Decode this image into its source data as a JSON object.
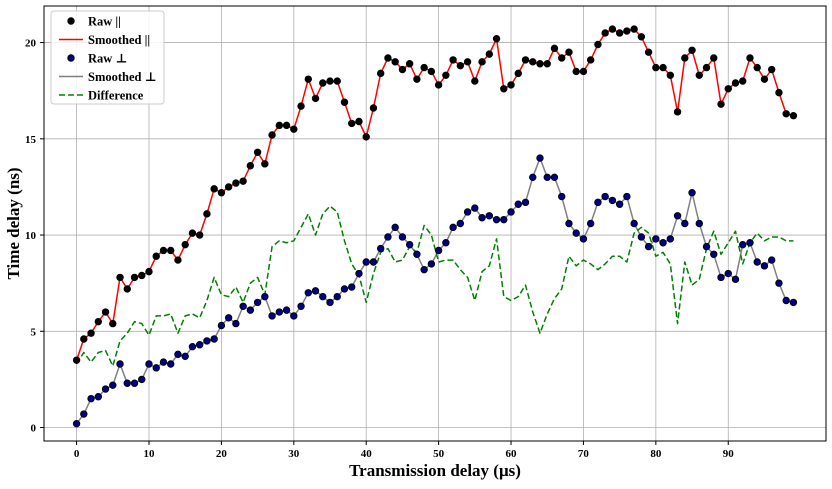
{
  "chart_data": {
    "type": "line",
    "title": "",
    "xlabel": "Transmission delay (μs)",
    "ylabel": "Time delay (ns)",
    "xlim": [
      -4.5,
      103.5
    ],
    "ylim": [
      -0.7,
      21.9
    ],
    "xticks": [
      0,
      10,
      20,
      30,
      40,
      50,
      60,
      70,
      80,
      90
    ],
    "yticks": [
      0,
      5,
      10,
      15,
      20
    ],
    "grid": true,
    "legend_position": "top-left",
    "x": [
      0,
      1,
      2,
      3,
      4,
      5,
      6,
      7,
      8,
      9,
      10,
      11,
      12,
      13,
      14,
      15,
      16,
      17,
      18,
      19,
      20,
      21,
      22,
      23,
      24,
      25,
      26,
      27,
      28,
      29,
      30,
      31,
      32,
      33,
      34,
      35,
      36,
      37,
      38,
      39,
      40,
      41,
      42,
      43,
      44,
      45,
      46,
      47,
      48,
      49,
      50,
      51,
      52,
      53,
      54,
      55,
      56,
      57,
      58,
      59,
      60,
      61,
      62,
      63,
      64,
      65,
      66,
      67,
      68,
      69,
      70,
      71,
      72,
      73,
      74,
      75,
      76,
      77,
      78,
      79,
      80,
      81,
      82,
      83,
      84,
      85,
      86,
      87,
      88,
      89,
      90,
      91,
      92,
      93,
      94,
      95,
      96,
      97,
      98,
      99
    ],
    "series": [
      {
        "name": "Raw ||",
        "kind": "scatter",
        "color": "#000000",
        "edge": "#000000",
        "values": [
          3.5,
          4.6,
          4.9,
          5.5,
          6.0,
          5.4,
          7.8,
          7.2,
          7.8,
          7.9,
          8.1,
          8.9,
          9.2,
          9.2,
          8.7,
          9.5,
          10.1,
          10.0,
          11.1,
          12.4,
          12.2,
          12.5,
          12.7,
          12.8,
          13.6,
          14.3,
          13.7,
          15.2,
          15.7,
          15.7,
          15.5,
          16.7,
          18.1,
          17.1,
          17.9,
          18.0,
          18.0,
          16.9,
          15.8,
          15.9,
          15.1,
          16.6,
          18.4,
          19.2,
          19.0,
          18.6,
          18.9,
          18.1,
          18.7,
          18.5,
          17.8,
          18.3,
          19.1,
          18.8,
          19.0,
          18.0,
          19.0,
          19.4,
          20.2,
          17.6,
          17.8,
          18.4,
          19.1,
          19.0,
          18.9,
          18.9,
          19.7,
          19.2,
          19.5,
          18.5,
          18.5,
          19.1,
          19.9,
          20.5,
          20.7,
          20.5,
          20.6,
          20.7,
          20.3,
          19.5,
          18.7,
          18.7,
          18.3,
          16.4,
          19.2,
          19.6,
          18.3,
          18.7,
          19.2,
          16.8,
          17.6,
          17.9,
          18.0,
          19.2,
          18.7,
          18.1,
          18.6,
          17.4,
          16.3,
          16.2
        ]
      },
      {
        "name": "Smoothed ||",
        "kind": "line",
        "color": "#ff0000",
        "dash": "solid",
        "values": [
          3.5,
          4.6,
          4.9,
          5.5,
          6.0,
          5.4,
          7.8,
          7.2,
          7.8,
          7.9,
          8.1,
          8.9,
          9.2,
          9.2,
          8.7,
          9.5,
          10.1,
          10.0,
          11.1,
          12.4,
          12.2,
          12.5,
          12.7,
          12.8,
          13.6,
          14.3,
          13.7,
          15.2,
          15.7,
          15.7,
          15.5,
          16.7,
          18.1,
          17.1,
          17.9,
          18.0,
          18.0,
          16.9,
          15.8,
          15.9,
          15.1,
          16.6,
          18.4,
          19.2,
          19.0,
          18.6,
          18.9,
          18.1,
          18.7,
          18.5,
          17.8,
          18.3,
          19.1,
          18.8,
          19.0,
          18.0,
          19.0,
          19.4,
          20.2,
          17.6,
          17.8,
          18.4,
          19.1,
          19.0,
          18.9,
          18.9,
          19.7,
          19.2,
          19.5,
          18.5,
          18.5,
          19.1,
          19.9,
          20.5,
          20.7,
          20.5,
          20.6,
          20.7,
          20.3,
          19.5,
          18.7,
          18.7,
          18.3,
          16.4,
          19.2,
          19.6,
          18.3,
          18.7,
          19.2,
          16.8,
          17.6,
          17.9,
          18.0,
          19.2,
          18.7,
          18.1,
          18.6,
          17.4,
          16.3,
          16.2
        ]
      },
      {
        "name": "Raw ⊥",
        "kind": "scatter",
        "color": "#000080",
        "edge": "#000000",
        "values": [
          0.2,
          0.7,
          1.5,
          1.6,
          2.0,
          2.2,
          3.3,
          2.3,
          2.3,
          2.5,
          3.3,
          3.1,
          3.4,
          3.3,
          3.8,
          3.7,
          4.2,
          4.3,
          4.5,
          4.6,
          5.3,
          5.7,
          5.4,
          6.3,
          6.1,
          6.5,
          6.8,
          5.8,
          6.0,
          6.1,
          5.8,
          6.3,
          7.0,
          7.1,
          6.8,
          6.5,
          6.8,
          7.2,
          7.3,
          8.0,
          8.6,
          8.6,
          9.3,
          9.9,
          10.4,
          9.9,
          9.5,
          9.0,
          8.2,
          8.5,
          9.2,
          9.6,
          10.4,
          10.6,
          11.2,
          11.4,
          10.9,
          11.0,
          10.8,
          10.8,
          11.2,
          11.6,
          11.7,
          13.0,
          14.0,
          13.0,
          13.0,
          12.0,
          10.6,
          10.1,
          9.8,
          10.6,
          11.7,
          12.0,
          11.8,
          11.6,
          12.0,
          10.6,
          9.9,
          9.4,
          9.8,
          9.6,
          9.8,
          11.0,
          10.6,
          12.2,
          10.6,
          9.4,
          9.0,
          7.8,
          8.0,
          7.7,
          9.5,
          9.6,
          8.6,
          8.4,
          8.7,
          7.5,
          6.6,
          6.5
        ]
      },
      {
        "name": "Smoothed ⊥",
        "kind": "line",
        "color": "#808080",
        "dash": "solid",
        "values": [
          0.2,
          0.7,
          1.5,
          1.6,
          2.0,
          2.2,
          3.3,
          2.3,
          2.3,
          2.5,
          3.3,
          3.1,
          3.4,
          3.3,
          3.8,
          3.7,
          4.2,
          4.3,
          4.5,
          4.6,
          5.3,
          5.7,
          5.4,
          6.3,
          6.1,
          6.5,
          6.8,
          5.8,
          6.0,
          6.1,
          5.8,
          6.3,
          7.0,
          7.1,
          6.8,
          6.5,
          6.8,
          7.2,
          7.3,
          8.0,
          8.6,
          8.6,
          9.3,
          9.9,
          10.4,
          9.9,
          9.5,
          9.0,
          8.2,
          8.5,
          9.2,
          9.6,
          10.4,
          10.6,
          11.2,
          11.4,
          10.9,
          11.0,
          10.8,
          10.8,
          11.2,
          11.6,
          11.7,
          13.0,
          14.0,
          13.0,
          13.0,
          12.0,
          10.6,
          10.1,
          9.8,
          10.6,
          11.7,
          12.0,
          11.8,
          11.6,
          12.0,
          10.6,
          9.9,
          9.4,
          9.8,
          9.6,
          9.8,
          11.0,
          10.6,
          12.2,
          10.6,
          9.4,
          9.0,
          7.8,
          8.0,
          7.7,
          9.5,
          9.6,
          8.6,
          8.4,
          8.7,
          7.5,
          6.6,
          6.5
        ]
      },
      {
        "name": "Difference",
        "kind": "line",
        "color": "#008000",
        "dash": "dashed",
        "values": [
          3.3,
          3.9,
          3.4,
          3.9,
          4.0,
          3.2,
          4.5,
          4.9,
          5.5,
          5.4,
          4.8,
          5.8,
          5.8,
          5.9,
          4.9,
          5.8,
          5.9,
          5.7,
          6.6,
          7.8,
          6.9,
          6.8,
          7.3,
          6.5,
          7.5,
          7.8,
          6.9,
          9.4,
          9.7,
          9.6,
          9.7,
          10.4,
          11.1,
          10.0,
          11.1,
          11.5,
          11.2,
          9.7,
          8.5,
          7.9,
          6.5,
          8.0,
          9.1,
          9.3,
          8.6,
          8.7,
          9.4,
          9.1,
          10.5,
          10.0,
          8.6,
          8.7,
          8.7,
          8.2,
          7.8,
          6.6,
          8.1,
          8.4,
          9.8,
          6.8,
          6.6,
          6.8,
          7.4,
          6.0,
          4.9,
          5.9,
          6.7,
          7.2,
          8.9,
          8.4,
          8.7,
          8.5,
          8.2,
          8.5,
          8.9,
          8.9,
          8.6,
          10.1,
          10.4,
          10.1,
          8.9,
          9.1,
          8.5,
          5.4,
          8.6,
          7.4,
          7.7,
          9.3,
          10.2,
          9.0,
          9.6,
          10.2,
          8.5,
          9.6,
          10.1,
          9.7,
          9.9,
          9.9,
          9.7,
          9.7
        ]
      }
    ]
  }
}
